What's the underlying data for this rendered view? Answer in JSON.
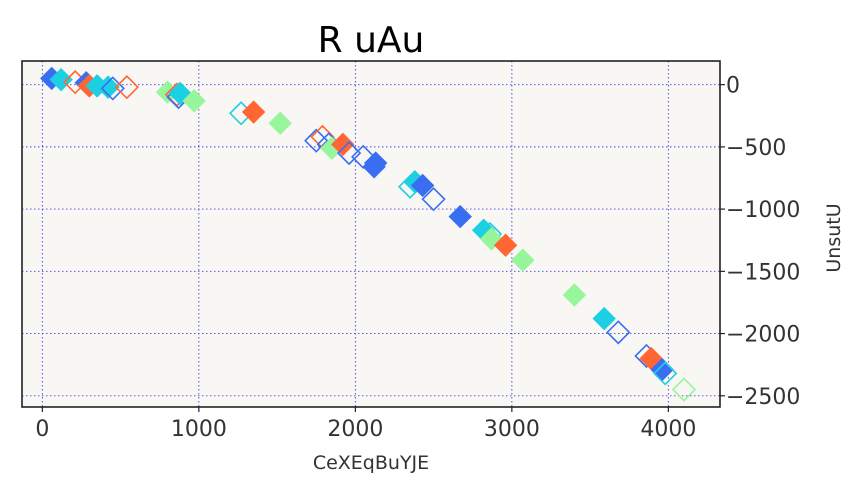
{
  "chart_data": {
    "type": "scatter",
    "title": "R uAu",
    "xlabel": "CeXEqBuYJE",
    "ylabel": "UnsutU",
    "xlim": [
      -130,
      4330
    ],
    "ylim": [
      -2590,
      190
    ],
    "xticks": [
      0,
      1000,
      2000,
      3000,
      4000
    ],
    "yticks": [
      0,
      -500,
      -1000,
      -1500,
      -2000,
      -2500
    ],
    "ytick_position": "right",
    "grid": true,
    "background": "#f9f7f3",
    "grid_color": "#4040e0",
    "marker": "diamond",
    "colors": {
      "blue": "#3a6ef2",
      "orange": "#ff6633",
      "cyan": "#1ccfe3",
      "green": "#97f59c"
    },
    "points": [
      {
        "x": 60,
        "y": 50,
        "color": "blue",
        "filled": true
      },
      {
        "x": 120,
        "y": 40,
        "color": "cyan",
        "filled": true
      },
      {
        "x": 210,
        "y": 20,
        "color": "orange",
        "filled": false
      },
      {
        "x": 280,
        "y": 15,
        "color": "blue",
        "filled": true
      },
      {
        "x": 300,
        "y": -10,
        "color": "orange",
        "filled": true
      },
      {
        "x": 350,
        "y": -10,
        "color": "cyan",
        "filled": true
      },
      {
        "x": 420,
        "y": -20,
        "color": "cyan",
        "filled": true
      },
      {
        "x": 450,
        "y": -30,
        "color": "blue",
        "filled": false
      },
      {
        "x": 540,
        "y": -20,
        "color": "orange",
        "filled": false
      },
      {
        "x": 800,
        "y": -60,
        "color": "green",
        "filled": true
      },
      {
        "x": 860,
        "y": -80,
        "color": "orange",
        "filled": false
      },
      {
        "x": 870,
        "y": -100,
        "color": "blue",
        "filled": false
      },
      {
        "x": 880,
        "y": -70,
        "color": "cyan",
        "filled": true
      },
      {
        "x": 970,
        "y": -130,
        "color": "green",
        "filled": true
      },
      {
        "x": 1270,
        "y": -230,
        "color": "cyan",
        "filled": false
      },
      {
        "x": 1350,
        "y": -220,
        "color": "orange",
        "filled": true
      },
      {
        "x": 1520,
        "y": -310,
        "color": "green",
        "filled": true
      },
      {
        "x": 1750,
        "y": -450,
        "color": "blue",
        "filled": false
      },
      {
        "x": 1790,
        "y": -420,
        "color": "orange",
        "filled": false
      },
      {
        "x": 1830,
        "y": -480,
        "color": "blue",
        "filled": false
      },
      {
        "x": 1850,
        "y": -510,
        "color": "green",
        "filled": true
      },
      {
        "x": 1920,
        "y": -480,
        "color": "orange",
        "filled": true
      },
      {
        "x": 1960,
        "y": -550,
        "color": "blue",
        "filled": false
      },
      {
        "x": 2050,
        "y": -580,
        "color": "blue",
        "filled": false
      },
      {
        "x": 2120,
        "y": -660,
        "color": "blue",
        "filled": true
      },
      {
        "x": 2130,
        "y": -630,
        "color": "blue",
        "filled": true
      },
      {
        "x": 2350,
        "y": -820,
        "color": "cyan",
        "filled": false
      },
      {
        "x": 2380,
        "y": -780,
        "color": "cyan",
        "filled": true
      },
      {
        "x": 2430,
        "y": -810,
        "color": "blue",
        "filled": true
      },
      {
        "x": 2500,
        "y": -920,
        "color": "blue",
        "filled": false
      },
      {
        "x": 2670,
        "y": -1060,
        "color": "blue",
        "filled": true
      },
      {
        "x": 2820,
        "y": -1170,
        "color": "cyan",
        "filled": true
      },
      {
        "x": 2860,
        "y": -1200,
        "color": "cyan",
        "filled": false
      },
      {
        "x": 2870,
        "y": -1240,
        "color": "green",
        "filled": true
      },
      {
        "x": 2960,
        "y": -1290,
        "color": "orange",
        "filled": true
      },
      {
        "x": 3070,
        "y": -1410,
        "color": "green",
        "filled": true
      },
      {
        "x": 3400,
        "y": -1690,
        "color": "green",
        "filled": true
      },
      {
        "x": 3590,
        "y": -1880,
        "color": "cyan",
        "filled": true
      },
      {
        "x": 3680,
        "y": -1990,
        "color": "blue",
        "filled": false
      },
      {
        "x": 3860,
        "y": -2180,
        "color": "blue",
        "filled": false
      },
      {
        "x": 3890,
        "y": -2200,
        "color": "orange",
        "filled": true
      },
      {
        "x": 3960,
        "y": -2290,
        "color": "blue",
        "filled": true
      },
      {
        "x": 3980,
        "y": -2320,
        "color": "cyan",
        "filled": false
      },
      {
        "x": 4100,
        "y": -2450,
        "color": "green",
        "filled": false
      }
    ]
  }
}
